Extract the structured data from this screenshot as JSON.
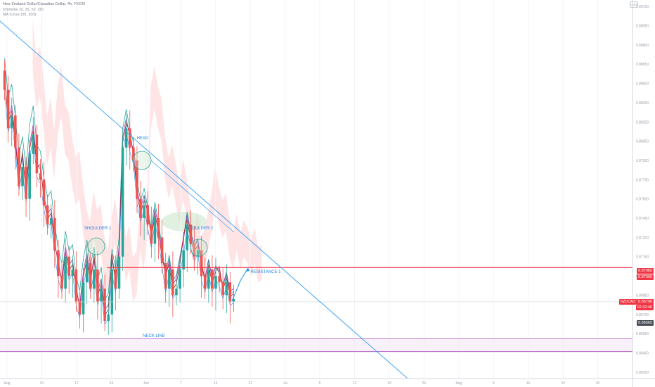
{
  "header": {
    "symbol_line": "New Zealand Dollar/Canadian Dollar, 4h, FXCM",
    "indicator_1": "Ichimoku (9, 26, 52, 26)",
    "indicator_2": "MA Cross (50, 200)",
    "logo_text": "LOG"
  },
  "colors": {
    "candle_up": "#26a69a",
    "candle_down": "#ef5350",
    "trendline": "#42a5f5",
    "resistance": "#f23645",
    "neckline": "#ab47bc",
    "kumo_bear": "#ffcdd2",
    "kumo_bull": "#c8e6c9",
    "ma_fast": "#9c27b0",
    "ma_slow": "#26a69a",
    "kijun": "#b71c1c",
    "tenkan": "#2196f3"
  },
  "chart_data": {
    "type": "candlestick",
    "title": "New Zealand Dollar/Canadian Dollar, 4h, FXCM",
    "symbol": "NZDCAD",
    "ylim": [
      0.862,
      0.8915
    ],
    "y_ticks": [
      "0.89100",
      "0.88950",
      "0.88800",
      "0.88650",
      "0.88500",
      "0.88350",
      "0.88200",
      "0.88050",
      "0.87900",
      "0.87750",
      "0.87600",
      "0.87450",
      "0.87300",
      "0.87150",
      "0.87000",
      "0.86850",
      "0.86700",
      "0.86550",
      "0.86400",
      "0.86250"
    ],
    "x_ticks": [
      "Aug",
      "10",
      "17",
      "24",
      "Jun",
      "7",
      "14",
      "21",
      "Jul",
      "5",
      "12",
      "19",
      "26",
      "Aug",
      "9",
      "16",
      "23",
      "30"
    ],
    "close_series": [
      0.8845,
      0.8815,
      0.8825,
      0.88,
      0.877,
      0.8785,
      0.876,
      0.8795,
      0.881,
      0.878,
      0.8775,
      0.8755,
      0.874,
      0.8745,
      0.872,
      0.87,
      0.869,
      0.8715,
      0.87,
      0.8705,
      0.868,
      0.867,
      0.8695,
      0.871,
      0.869,
      0.8705,
      0.868,
      0.869,
      0.8665,
      0.867,
      0.8705,
      0.869,
      0.8715,
      0.88,
      0.8815,
      0.88,
      0.879,
      0.876,
      0.8745,
      0.8755,
      0.874,
      0.8725,
      0.8745,
      0.873,
      0.871,
      0.869,
      0.8705,
      0.8685,
      0.869,
      0.8705,
      0.872,
      0.874,
      0.8725,
      0.8715,
      0.872,
      0.87,
      0.869,
      0.8705,
      0.869,
      0.87,
      0.8695,
      0.8685,
      0.8695,
      0.868,
      0.8682
    ],
    "annotations": [
      "HEAD",
      "SHOULDER 1",
      "SHOULDER 2",
      "NECK LINE",
      "RESISTANCE 1"
    ],
    "levels": {
      "resistance": 0.87065,
      "last_price": 0.86798,
      "low_marker": 0.86565,
      "neckline_upper": 0.8651,
      "neckline_lower": 0.8641
    },
    "trendline_points": [
      {
        "x": "Aug",
        "y": 0.8915
      },
      {
        "x": "Aug 9",
        "y": 0.862
      }
    ],
    "projection": "bullish arrow toward resistance after neckline retest"
  },
  "price_labels": {
    "resistance_top": "0.87065",
    "resistance_bottom": "0.87065",
    "last_symbol": "NZDCAD",
    "last_price": "0.86798",
    "countdown": "02:32:46",
    "low_marker": "0.86565"
  }
}
